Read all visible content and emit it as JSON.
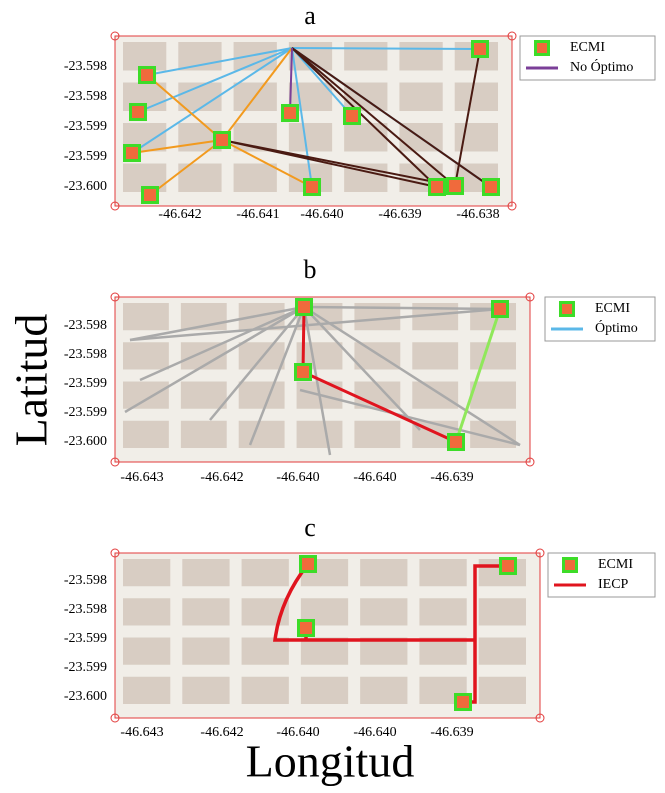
{
  "panels": [
    {
      "label": "a",
      "yticks": [
        "-23.598",
        "-23.598",
        "-23.599",
        "-23.599",
        "-23.600"
      ],
      "xticks": [
        "-46.642",
        "-46.641",
        "-46.640",
        "-46.639",
        "-46.638"
      ],
      "legend": [
        "ECMI",
        "No Óptimo"
      ]
    },
    {
      "label": "b",
      "yticks": [
        "-23.598",
        "-23.598",
        "-23.599",
        "-23.599",
        "-23.600"
      ],
      "xticks": [
        "-46.643",
        "-46.642",
        "-46.640",
        "-46.640",
        "-46.639"
      ],
      "legend": [
        "ECMI",
        "Óptimo"
      ]
    },
    {
      "label": "c",
      "yticks": [
        "-23.598",
        "-23.598",
        "-23.599",
        "-23.599",
        "-23.600"
      ],
      "xticks": [
        "-46.643",
        "-46.642",
        "-46.640",
        "-46.640",
        "-46.639"
      ],
      "legend": [
        "ECMI",
        "IECP"
      ]
    }
  ],
  "ylabel": "Latitud",
  "xlabel": "Longitud"
}
